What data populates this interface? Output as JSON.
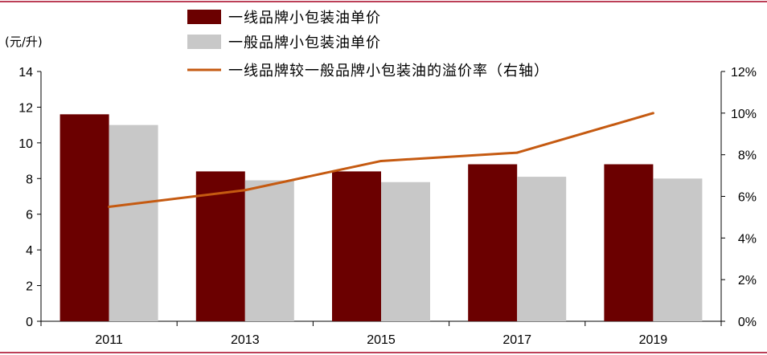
{
  "chart_data": {
    "type": "bar",
    "categories": [
      "2011",
      "2013",
      "2015",
      "2017",
      "2019"
    ],
    "series": [
      {
        "name": "一线品牌小包装油单价",
        "kind": "bar",
        "color": "#6b0000",
        "values": [
          11.6,
          8.4,
          8.4,
          8.8,
          8.8
        ]
      },
      {
        "name": "一般品牌小包装油单价",
        "kind": "bar",
        "color": "#c8c8c8",
        "values": [
          11.0,
          7.9,
          7.8,
          8.1,
          8.0
        ]
      },
      {
        "name": "一线品牌较一般品牌小包装油的溢价率（右轴）",
        "kind": "line",
        "axis": "right",
        "color": "#c55a11",
        "values": [
          5.5,
          6.3,
          7.7,
          8.1,
          10.0
        ]
      }
    ],
    "y_left": {
      "unit_label": "(元/升)",
      "ticks": [
        "0",
        "2",
        "4",
        "6",
        "8",
        "10",
        "12",
        "14"
      ],
      "range": [
        0,
        14
      ]
    },
    "y_right": {
      "ticks": [
        "0%",
        "2%",
        "4%",
        "6%",
        "8%",
        "10%",
        "12%"
      ],
      "range": [
        0,
        12
      ]
    },
    "legend_position": "top-center",
    "grid": false,
    "border_color": "#a50021"
  }
}
